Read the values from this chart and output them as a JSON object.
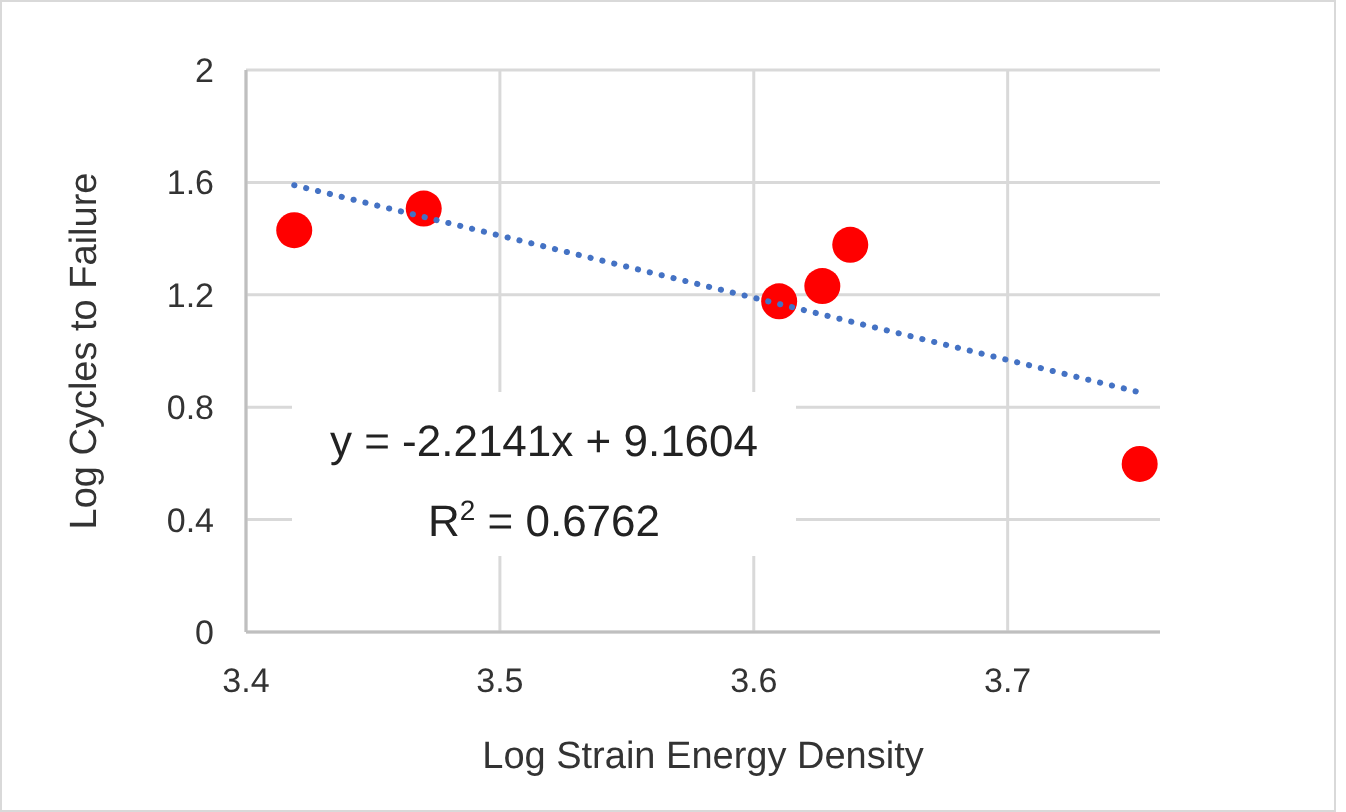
{
  "chart_data": {
    "type": "scatter",
    "xlabel": "Log Strain Energy Density",
    "ylabel": "Log Cycles to Failure",
    "xlim": [
      3.4,
      3.76
    ],
    "xticks": [
      3.4,
      3.5,
      3.6,
      3.7
    ],
    "ylim": [
      0,
      2
    ],
    "yticks": [
      0,
      0.4,
      0.8,
      1.2,
      1.6,
      2
    ],
    "grid": true,
    "series": [
      {
        "color": "#ff0000",
        "marker": "circle",
        "x": [
          3.419,
          3.47,
          3.61,
          3.627,
          3.638,
          3.752
        ],
        "values": [
          1.43,
          1.507,
          1.177,
          1.231,
          1.378,
          0.598
        ]
      },
      {
        "type": "line",
        "color": "#4472c4",
        "line_style": "dotted",
        "x": [
          3.419,
          3.752
        ],
        "values": [
          1.59,
          0.853
        ]
      }
    ],
    "annotations": [
      "y = -2.2141x + 9.1604\nR$^{2}$ = 0.6762"
    ]
  }
}
